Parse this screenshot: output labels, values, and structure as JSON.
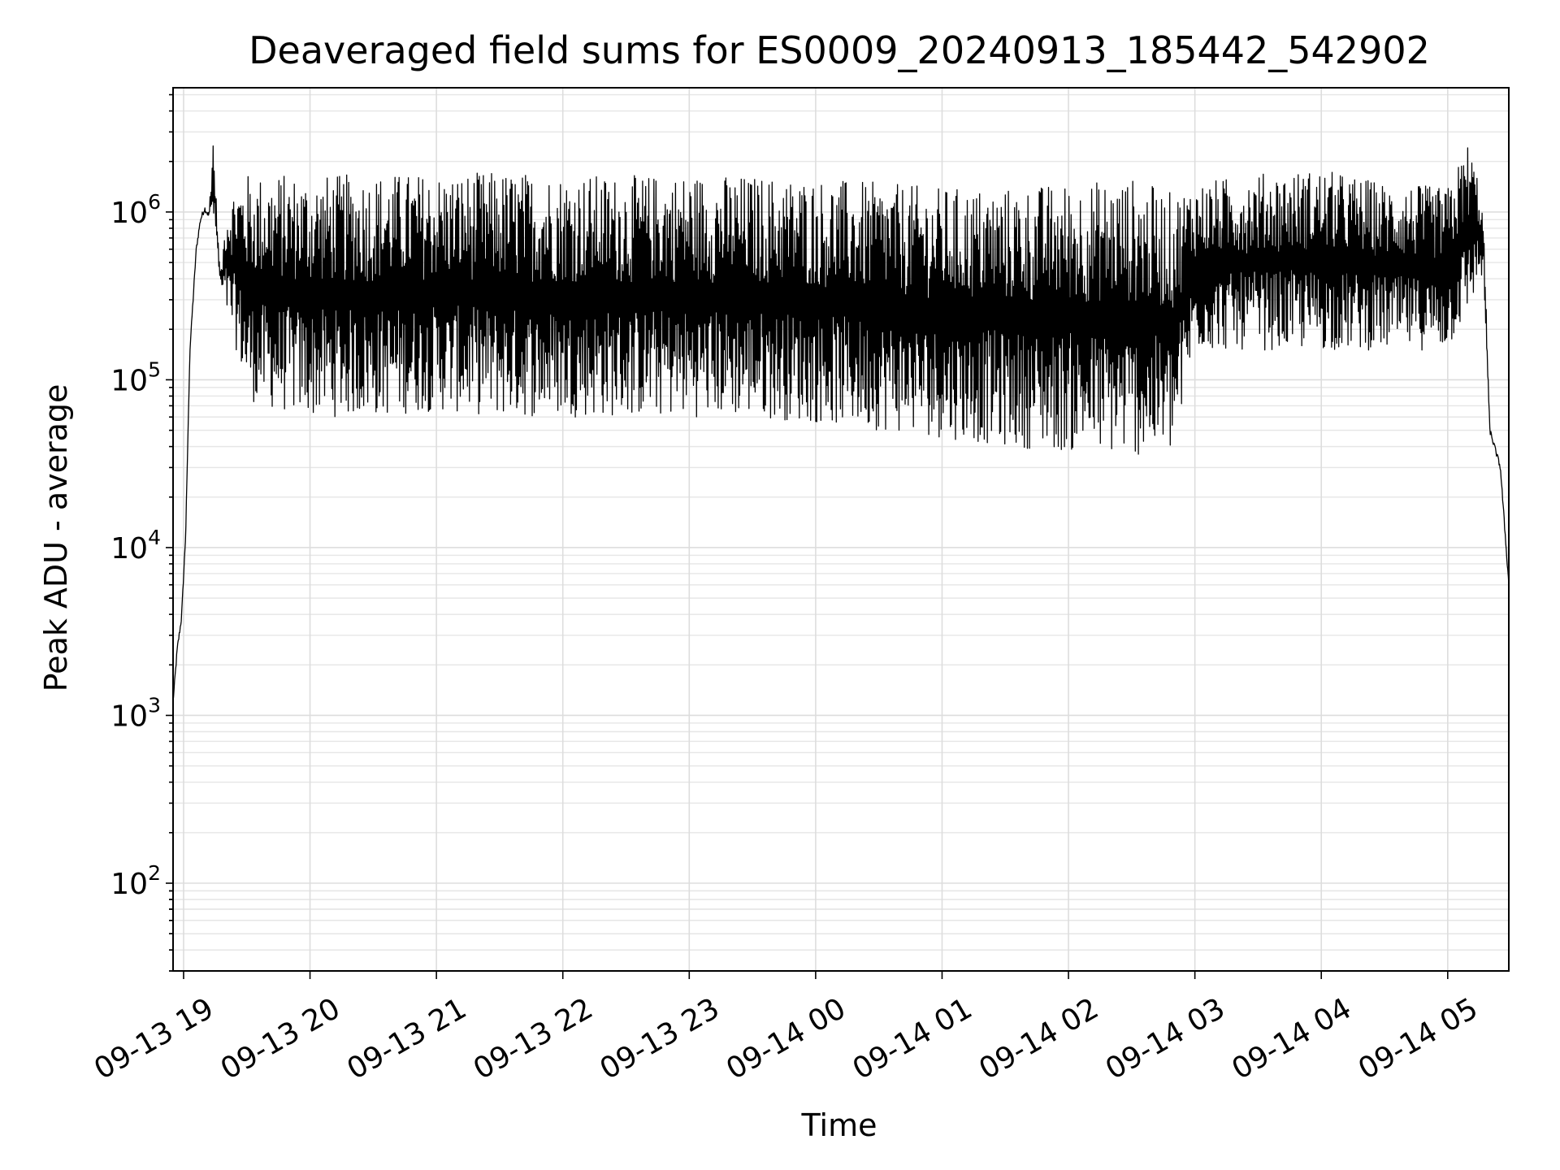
{
  "chart_data": {
    "type": "line",
    "title": "Deaveraged field sums for ES0009_20240913_185442_542902",
    "xlabel": "Time",
    "ylabel": "Peak ADU - average",
    "yscale": "log",
    "ylim": [
      30,
      5500000
    ],
    "xlim": [
      "2024-09-13 18:55",
      "2024-09-14 05:29"
    ],
    "grid": true,
    "legend": "none",
    "x_ticks": [
      "09-13 19",
      "09-13 20",
      "09-13 21",
      "09-13 22",
      "09-13 23",
      "09-14 00",
      "09-14 01",
      "09-14 02",
      "09-14 03",
      "09-14 04",
      "09-14 05"
    ],
    "y_ticks": [
      {
        "base": "10",
        "exp": "2",
        "value": 100
      },
      {
        "base": "10",
        "exp": "3",
        "value": 1000
      },
      {
        "base": "10",
        "exp": "4",
        "value": 10000
      },
      {
        "base": "10",
        "exp": "5",
        "value": 100000
      },
      {
        "base": "10",
        "exp": "6",
        "value": 1000000
      }
    ],
    "series": [
      {
        "color": "#000000",
        "x": [
          "2024-09-13 18:55",
          "2024-09-13 18:57",
          "2024-09-13 18:59",
          "2024-09-13 19:01",
          "2024-09-13 19:03",
          "2024-09-13 19:06",
          "2024-09-13 19:08",
          "2024-09-13 19:10",
          "2024-09-13 19:12",
          "2024-09-13 19:14",
          "2024-09-13 19:16",
          "2024-09-13 19:17",
          "2024-09-13 19:18",
          "2024-09-13 19:20",
          "2024-09-13 19:25",
          "2024-09-13 19:30",
          "2024-09-13 19:35",
          "2024-09-13 19:45",
          "2024-09-13 20:00",
          "2024-09-13 20:30",
          "2024-09-13 21:00",
          "2024-09-13 21:30",
          "2024-09-13 22:00",
          "2024-09-13 22:30",
          "2024-09-13 23:00",
          "2024-09-13 23:30",
          "2024-09-14 00:00",
          "2024-09-14 00:30",
          "2024-09-14 01:00",
          "2024-09-14 01:30",
          "2024-09-14 02:00",
          "2024-09-14 02:30",
          "2024-09-14 02:50",
          "2024-09-14 03:00",
          "2024-09-14 03:30",
          "2024-09-14 04:00",
          "2024-09-14 04:30",
          "2024-09-14 05:00",
          "2024-09-14 05:10",
          "2024-09-14 05:15",
          "2024-09-14 05:17",
          "2024-09-14 05:20",
          "2024-09-14 05:25",
          "2024-09-14 05:29"
        ],
        "y_upper": [
          1200,
          2500,
          3800,
          12000,
          150000,
          600000,
          900000,
          1050000,
          950000,
          3000000,
          900000,
          500000,
          450000,
          1100000,
          1500000,
          1700000,
          1650000,
          1700000,
          1650000,
          1700000,
          1700000,
          1750000,
          1700000,
          1650000,
          1700000,
          1650000,
          1600000,
          1500000,
          1400000,
          1400000,
          1500000,
          1600000,
          1300000,
          1500000,
          1700000,
          1800000,
          1500000,
          1400000,
          2700000,
          1500000,
          900000,
          50000,
          30000,
          6000
        ],
        "y_lower": [
          1200,
          2500,
          3800,
          12000,
          150000,
          600000,
          900000,
          1050000,
          950000,
          900000,
          600000,
          400000,
          350000,
          250000,
          150000,
          80000,
          70000,
          65000,
          60000,
          60000,
          65000,
          60000,
          60000,
          60000,
          60000,
          60000,
          55000,
          50000,
          45000,
          40000,
          37000,
          35000,
          35000,
          150000,
          150000,
          150000,
          150000,
          150000,
          250000,
          400000,
          400000,
          50000,
          30000,
          6000
        ]
      }
    ]
  }
}
